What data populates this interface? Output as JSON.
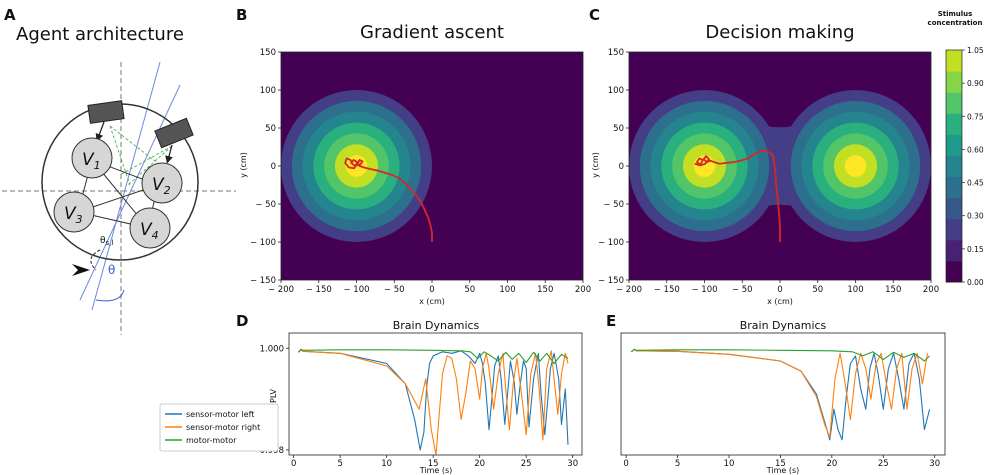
{
  "panels": {
    "A": {
      "letter": "A",
      "title": "Agent architecture",
      "nodes": [
        {
          "main": "V",
          "sub": "1"
        },
        {
          "main": "V",
          "sub": "2"
        },
        {
          "main": "V",
          "sub": "3"
        },
        {
          "main": "V",
          "sub": "4"
        }
      ],
      "labels": {
        "theta": "θ",
        "theta_l": "θ",
        "theta_l_sub": "s,l"
      }
    },
    "B": {
      "letter": "B"
    },
    "C": {
      "letter": "C"
    },
    "D": {
      "letter": "D"
    },
    "E": {
      "letter": "E"
    }
  },
  "colors": {
    "viridis": [
      "#440154",
      "#482173",
      "#433e85",
      "#38588c",
      "#2d708e",
      "#25858e",
      "#1e9b8a",
      "#2ab07f",
      "#52c569",
      "#86d549",
      "#c2df23",
      "#fde725"
    ],
    "trajectory": "#d62728",
    "sensor_motor_left": "#1f77b4",
    "sensor_motor_right": "#ff7f0e",
    "motor_motor": "#2ca02c"
  },
  "chart_data": [
    {
      "id": "B",
      "type": "heatmap",
      "title": "Gradient ascent",
      "xlabel": "x (cm)",
      "ylabel": "y (cm)",
      "xlim": [
        -200,
        200
      ],
      "ylim": [
        -150,
        150
      ],
      "xticks": [
        -200,
        -150,
        -100,
        -50,
        0,
        50,
        100,
        150,
        200
      ],
      "yticks": [
        150,
        100,
        50,
        0,
        -50,
        -100,
        -150
      ],
      "sources": [
        [
          -100,
          0
        ]
      ],
      "radius": 100,
      "trajectory": {
        "points": [
          [
            0,
            -100
          ],
          [
            0,
            -88
          ],
          [
            -2,
            -78
          ],
          [
            -5,
            -68
          ],
          [
            -10,
            -57
          ],
          [
            -16,
            -45
          ],
          [
            -24,
            -35
          ],
          [
            -33,
            -25
          ],
          [
            -42,
            -17
          ],
          [
            -52,
            -12
          ],
          [
            -62,
            -9
          ],
          [
            -72,
            -6
          ],
          [
            -82,
            -4
          ],
          [
            -90,
            -2
          ],
          [
            -96,
            0
          ],
          [
            -98,
            4
          ],
          [
            -96,
            8
          ],
          [
            -92,
            6
          ],
          [
            -95,
            2
          ],
          [
            -102,
            0
          ],
          [
            -107,
            4
          ],
          [
            -104,
            8
          ],
          [
            -99,
            5
          ],
          [
            -103,
            -3
          ],
          [
            -110,
            -2
          ],
          [
            -115,
            4
          ],
          [
            -113,
            10
          ],
          [
            -108,
            8
          ],
          [
            -105,
            2
          ]
        ]
      }
    },
    {
      "id": "C",
      "type": "heatmap",
      "title": "Decision making",
      "xlabel": "x (cm)",
      "ylabel": "y (cm)",
      "xlim": [
        -200,
        200
      ],
      "ylim": [
        -150,
        150
      ],
      "xticks": [
        -200,
        -150,
        -100,
        -50,
        0,
        50,
        100,
        150,
        200
      ],
      "yticks": [
        150,
        100,
        50,
        0,
        -50,
        -100,
        -150
      ],
      "sources": [
        [
          -100,
          0
        ],
        [
          100,
          0
        ]
      ],
      "radius": 100,
      "colorbar": {
        "title": "Stimulus concentration",
        "range": [
          0,
          1.05
        ],
        "ticks": [
          "0.00",
          "0.15",
          "0.30",
          "0.45",
          "0.60",
          "0.75",
          "0.90",
          "1.05"
        ]
      },
      "trajectory": {
        "points": [
          [
            0,
            -100
          ],
          [
            0,
            -82
          ],
          [
            -1,
            -65
          ],
          [
            -3,
            -45
          ],
          [
            -5,
            -25
          ],
          [
            -6,
            -10
          ],
          [
            -8,
            6
          ],
          [
            -10,
            15
          ],
          [
            -16,
            19
          ],
          [
            -24,
            20
          ],
          [
            -32,
            17
          ],
          [
            -42,
            10
          ],
          [
            -52,
            7
          ],
          [
            -62,
            5
          ],
          [
            -72,
            4
          ],
          [
            -80,
            3
          ],
          [
            -87,
            5
          ],
          [
            -92,
            7
          ],
          [
            -97,
            5
          ],
          [
            -101,
            9
          ],
          [
            -98,
            13
          ],
          [
            -94,
            9
          ],
          [
            -99,
            3
          ],
          [
            -105,
            1
          ],
          [
            -110,
            5
          ],
          [
            -107,
            10
          ],
          [
            -102,
            8
          ],
          [
            -106,
            1
          ],
          [
            -113,
            3
          ]
        ]
      }
    },
    {
      "id": "D",
      "type": "line",
      "title": "Brain Dynamics",
      "xlabel": "Time (s)",
      "ylabel": "PLV",
      "xlim": [
        -0.5,
        31
      ],
      "ylim": [
        0.9979,
        1.0003
      ],
      "xticks": [
        0,
        5,
        10,
        15,
        20,
        25,
        30
      ],
      "yticks": [
        1.0,
        0.998
      ],
      "ytick_labels": [
        "1.000",
        "0.998"
      ],
      "legend_position": "left",
      "series": [
        {
          "name": "sensor-motor left",
          "color_key": "sensor_motor_left",
          "x": [
            0.5,
            0.8,
            1,
            5,
            10,
            12,
            13,
            13.6,
            14,
            14.3,
            14.6,
            15,
            16,
            17,
            18,
            18.8,
            19.5,
            20,
            20.3,
            20.6,
            21,
            21.3,
            21.6,
            22,
            22.3,
            22.7,
            23,
            23.3,
            23.7,
            24,
            24.3,
            24.7,
            25,
            25.3,
            25.8,
            26.3,
            26.6,
            27,
            27.6,
            28,
            28.5,
            28.8,
            29.2,
            29.5
          ],
          "y": [
            0.99992,
            0.99997,
            0.99994,
            0.9999,
            0.9997,
            0.9993,
            0.9986,
            0.998,
            0.99835,
            0.99925,
            0.9997,
            0.99985,
            0.99993,
            0.9999,
            0.99995,
            0.99985,
            0.9997,
            0.9999,
            0.9997,
            0.9993,
            0.9984,
            0.999,
            0.99965,
            0.99985,
            0.9994,
            0.9985,
            0.9991,
            0.99975,
            0.99935,
            0.9987,
            0.9992,
            0.99975,
            0.9996,
            0.99845,
            0.9994,
            0.9999,
            0.9991,
            0.9983,
            0.9996,
            0.9999,
            0.9994,
            0.9985,
            0.9992,
            0.9981
          ]
        },
        {
          "name": "sensor-motor right",
          "color_key": "sensor_motor_right",
          "x": [
            0.5,
            0.8,
            1,
            5,
            10,
            12,
            13.5,
            14.2,
            14.8,
            15.3,
            15.6,
            16,
            16.5,
            17,
            17.5,
            18,
            18.5,
            19,
            19.5,
            20,
            20.3,
            20.7,
            21,
            21.5,
            22,
            22.5,
            22.8,
            23.2,
            23.6,
            24,
            24.5,
            25,
            25.5,
            26,
            26.4,
            26.8,
            27.2,
            27.7,
            28,
            28.4,
            28.8,
            29.2,
            29.5
          ],
          "y": [
            0.99992,
            0.99997,
            0.99994,
            0.9999,
            0.99965,
            0.9993,
            0.9988,
            0.9994,
            0.9984,
            0.9979,
            0.9986,
            0.9995,
            0.99985,
            0.9998,
            0.9994,
            0.9986,
            0.9991,
            0.99975,
            0.9996,
            0.999,
            0.9996,
            0.9999,
            0.9996,
            0.9988,
            0.9995,
            0.9999,
            0.9992,
            0.9984,
            0.9993,
            0.9998,
            0.9991,
            0.9983,
            0.9995,
            0.9999,
            0.9992,
            0.9982,
            0.9996,
            0.99995,
            0.9994,
            0.9987,
            0.9995,
            0.9999,
            0.9997
          ]
        },
        {
          "name": "motor-motor",
          "color_key": "motor_motor",
          "x": [
            0.5,
            0.8,
            1,
            5,
            10,
            15,
            18,
            19,
            19.8,
            20.5,
            21.2,
            22,
            22.8,
            23.5,
            24.2,
            25,
            25.8,
            26.5,
            27.2,
            28,
            28.8,
            29.5
          ],
          "y": [
            0.99992,
            0.99998,
            0.99996,
            0.99997,
            0.99997,
            0.99996,
            0.99995,
            0.99993,
            0.9998,
            0.99993,
            0.99985,
            0.99975,
            0.99992,
            0.99978,
            0.9999,
            0.99972,
            0.99992,
            0.99975,
            0.9999,
            0.9997,
            0.99988,
            0.9998
          ]
        }
      ]
    },
    {
      "id": "E",
      "type": "line",
      "title": "Brain Dynamics",
      "xlabel": "Time (s)",
      "xlim": [
        -0.5,
        31
      ],
      "ylim": [
        0.9979,
        1.0003
      ],
      "xticks": [
        0,
        5,
        10,
        15,
        20,
        25,
        30
      ],
      "series": [
        {
          "color_key": "sensor_motor_left",
          "x": [
            0.5,
            0.8,
            1,
            5,
            10,
            15,
            17,
            18.5,
            19.3,
            19.8,
            20.2,
            20.6,
            21,
            21.4,
            21.8,
            22.3,
            22.8,
            23.3,
            23.7,
            24.1,
            24.5,
            25,
            25.5,
            26,
            26.5,
            27,
            27.5,
            28,
            28.5,
            29,
            29.5
          ],
          "y": [
            0.99993,
            0.99998,
            0.99995,
            0.99994,
            0.99988,
            0.99975,
            0.99955,
            0.9991,
            0.99855,
            0.9982,
            0.9988,
            0.9984,
            0.9982,
            0.99905,
            0.9997,
            0.99985,
            0.9992,
            0.9988,
            0.9996,
            0.9999,
            0.9995,
            0.9988,
            0.9996,
            0.9999,
            0.9994,
            0.9988,
            0.9997,
            0.9999,
            0.9994,
            0.9984,
            0.9988
          ]
        },
        {
          "color_key": "sensor_motor_right",
          "x": [
            0.5,
            0.8,
            1,
            5,
            10,
            15,
            17,
            18.5,
            19.3,
            19.8,
            20.3,
            20.8,
            21.3,
            21.8,
            22.3,
            22.8,
            23.3,
            23.8,
            24.3,
            24.8,
            25.3,
            25.8,
            26.3,
            26.8,
            27.3,
            27.8,
            28.3,
            28.8,
            29.3
          ],
          "y": [
            0.99993,
            0.99998,
            0.99995,
            0.99994,
            0.99988,
            0.99975,
            0.99955,
            0.99905,
            0.9985,
            0.99825,
            0.9994,
            0.9999,
            0.9993,
            0.9986,
            0.9995,
            0.9999,
            0.9996,
            0.999,
            0.9997,
            0.9999,
            0.9993,
            0.9988,
            0.9996,
            0.9999,
            0.9988,
            0.9996,
            0.9999,
            0.9993,
            0.9999
          ]
        },
        {
          "color_key": "motor_motor",
          "x": [
            0.5,
            0.8,
            1,
            5,
            10,
            15,
            20,
            22,
            23,
            24,
            25,
            26,
            27,
            28,
            29,
            29.5
          ],
          "y": [
            0.99993,
            0.99998,
            0.99996,
            0.99997,
            0.99997,
            0.99996,
            0.99995,
            0.99993,
            0.99985,
            0.99993,
            0.99978,
            0.99992,
            0.99982,
            0.9999,
            0.99975,
            0.99985
          ]
        }
      ]
    }
  ]
}
